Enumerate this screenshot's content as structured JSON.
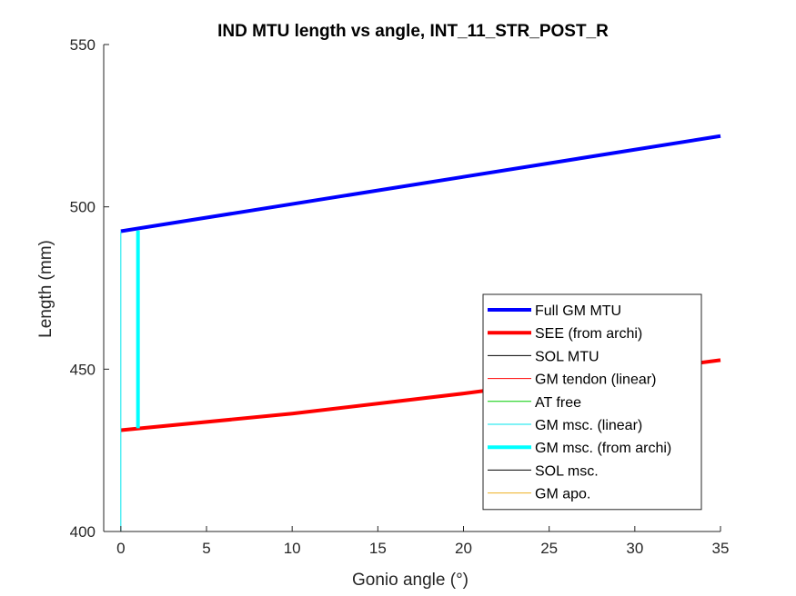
{
  "chart_data": {
    "type": "line",
    "title": "IND MTU length vs angle, INT_11_STR_POST_R",
    "xlabel": "Gonio angle (°)",
    "ylabel": "Length (mm)",
    "xlim": [
      -1,
      35
    ],
    "ylim": [
      400,
      550
    ],
    "xticks": [
      0,
      5,
      10,
      15,
      20,
      25,
      30,
      35
    ],
    "yticks": [
      400,
      450,
      500,
      550
    ],
    "grid": false,
    "legend_position": "bottom-right",
    "series": [
      {
        "name": "Full GM MTU",
        "color": "#0000ff",
        "width": 4,
        "x": [
          0,
          35
        ],
        "y": [
          492.5,
          521.8
        ]
      },
      {
        "name": "SEE (from archi)",
        "color": "#ff0000",
        "width": 4,
        "x": [
          0,
          10,
          20,
          35
        ],
        "y": [
          431.2,
          436.3,
          442.5,
          452.8
        ]
      },
      {
        "name": "SOL MTU",
        "color": "#000000",
        "width": 1,
        "x": [],
        "y": []
      },
      {
        "name": "GM tendon (linear)",
        "color": "#ff0000",
        "width": 1,
        "x": [],
        "y": []
      },
      {
        "name": "AT free",
        "color": "#00cc00",
        "width": 1,
        "x": [],
        "y": []
      },
      {
        "name": "GM msc. (linear)",
        "color": "#00e5ee",
        "width": 1,
        "x": [
          0,
          0
        ],
        "y": [
          400,
          492.5
        ]
      },
      {
        "name": "GM msc. (from archi)",
        "color": "#00ffff",
        "width": 4,
        "x": [
          1,
          1
        ],
        "y": [
          431.8,
          492.7
        ]
      },
      {
        "name": "SOL msc.",
        "color": "#000000",
        "width": 1,
        "x": [],
        "y": []
      },
      {
        "name": "GM apo.",
        "color": "#edb120",
        "width": 1,
        "x": [],
        "y": []
      }
    ]
  }
}
